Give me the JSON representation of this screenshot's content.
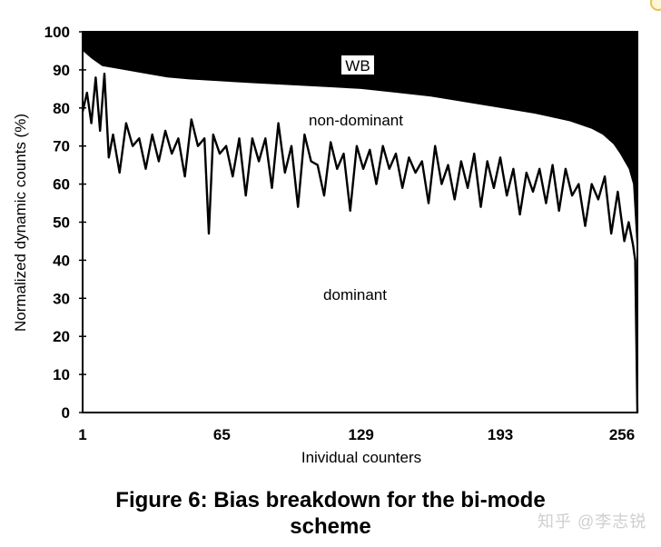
{
  "chart_data": {
    "type": "area",
    "title": "",
    "xlabel": "Inividual counters",
    "ylabel": "Normalized dynamic counts (%)",
    "ylim": [
      0,
      100
    ],
    "xlim": [
      1,
      256
    ],
    "x_ticks": [
      "1",
      "65",
      "129",
      "193",
      "256"
    ],
    "y_ticks": [
      "0",
      "10",
      "20",
      "30",
      "40",
      "50",
      "60",
      "70",
      "80",
      "90",
      "100"
    ],
    "grid": false,
    "legend": "none (regions labeled in-plot)",
    "region_labels": {
      "top": "WB",
      "middle": "non-dominant",
      "bottom": "dominant"
    },
    "series": [
      {
        "name": "dominant (upper edge of dominant region)",
        "style": "jagged line",
        "x": [
          1,
          3,
          5,
          7,
          9,
          11,
          13,
          15,
          18,
          21,
          24,
          27,
          30,
          33,
          36,
          39,
          42,
          45,
          48,
          51,
          54,
          57,
          59,
          61,
          64,
          67,
          70,
          73,
          76,
          79,
          82,
          85,
          88,
          91,
          94,
          97,
          100,
          103,
          106,
          109,
          112,
          115,
          118,
          121,
          124,
          127,
          130,
          133,
          136,
          139,
          142,
          145,
          148,
          151,
          154,
          157,
          160,
          163,
          166,
          169,
          172,
          175,
          178,
          181,
          184,
          187,
          190,
          193,
          196,
          199,
          202,
          205,
          208,
          211,
          214,
          217,
          220,
          223,
          226,
          229,
          232,
          235,
          238,
          241,
          244,
          247,
          250,
          252,
          254,
          255,
          256
        ],
        "values": [
          79,
          84,
          76,
          88,
          74,
          89,
          67,
          73,
          63,
          76,
          70,
          72,
          64,
          73,
          66,
          74,
          68,
          72,
          62,
          77,
          70,
          72,
          47,
          73,
          68,
          70,
          62,
          72,
          57,
          72,
          66,
          72,
          59,
          76,
          63,
          70,
          54,
          73,
          66,
          65,
          57,
          71,
          64,
          68,
          53,
          70,
          64,
          69,
          60,
          70,
          64,
          68,
          59,
          67,
          63,
          66,
          55,
          70,
          60,
          65,
          56,
          66,
          59,
          68,
          54,
          66,
          59,
          67,
          57,
          64,
          52,
          63,
          58,
          64,
          55,
          65,
          53,
          64,
          57,
          60,
          49,
          60,
          56,
          62,
          47,
          58,
          45,
          50,
          44,
          40,
          0
        ]
      },
      {
        "name": "non-dominant (upper boundary, below WB)",
        "style": "smooth decreasing boundary; black fill above = WB",
        "x": [
          1,
          5,
          10,
          20,
          30,
          40,
          50,
          65,
          80,
          97,
          113,
          129,
          145,
          161,
          177,
          193,
          209,
          225,
          235,
          240,
          245,
          248,
          250,
          252,
          254,
          256
        ],
        "values": [
          95,
          93,
          91,
          90,
          89,
          88,
          87.5,
          87,
          86.5,
          86,
          85.5,
          85,
          84,
          83,
          81.5,
          80,
          78.5,
          76.5,
          74.5,
          73,
          70.5,
          68,
          66,
          64,
          60,
          40
        ]
      },
      {
        "name": "WB",
        "style": "solid black fill from non-dominant boundary to 100%",
        "x": [
          1,
          256
        ],
        "values": [
          100,
          100
        ]
      }
    ]
  },
  "figure": {
    "caption_line1": "Figure 6: Bias breakdown for the bi-mode",
    "caption_line2": "scheme"
  },
  "watermark": "知乎 @李志锐"
}
